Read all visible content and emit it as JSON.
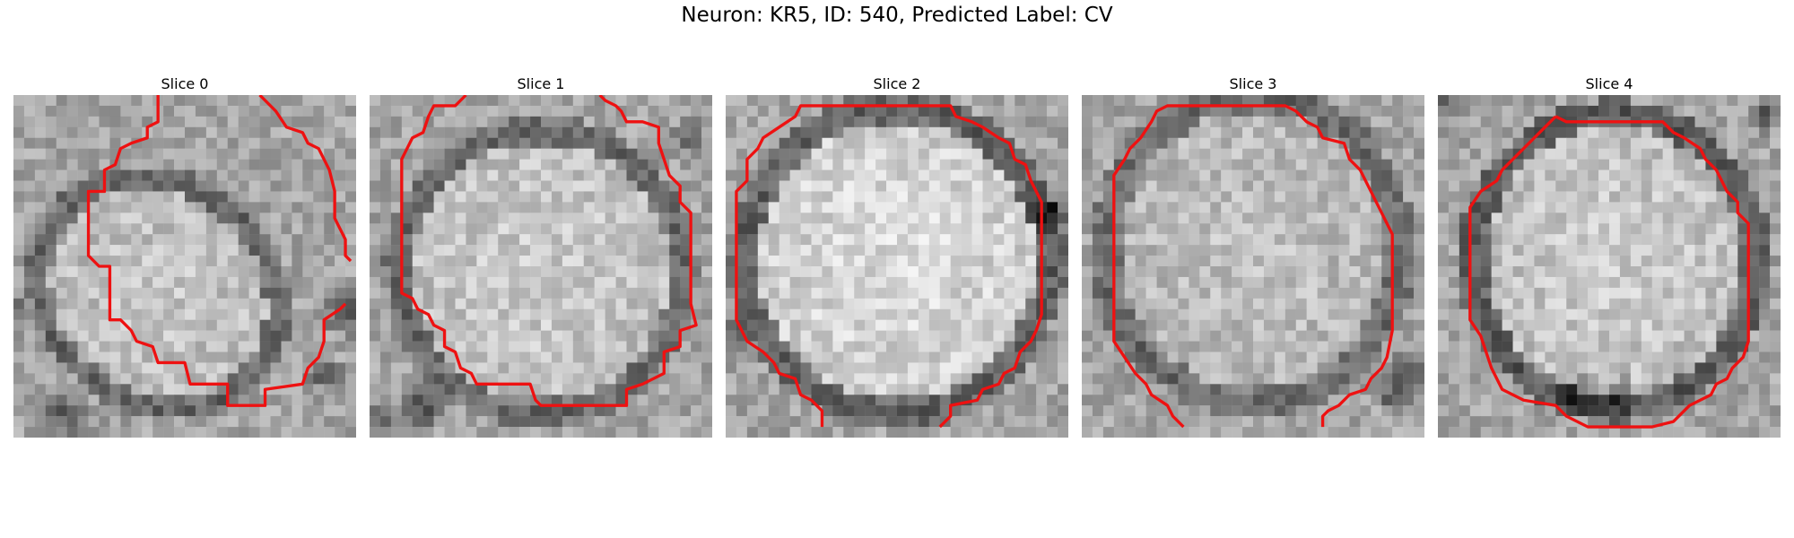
{
  "figure": {
    "title": "Neuron: KR5, ID: 540, Predicted Label: CV"
  },
  "panels": [
    {
      "title": "Slice 0"
    },
    {
      "title": "Slice 1"
    },
    {
      "title": "Slice 2"
    },
    {
      "title": "Slice 3"
    },
    {
      "title": "Slice 4"
    }
  ],
  "colors": {
    "contour": "#ee1111",
    "background": "#ffffff"
  }
}
